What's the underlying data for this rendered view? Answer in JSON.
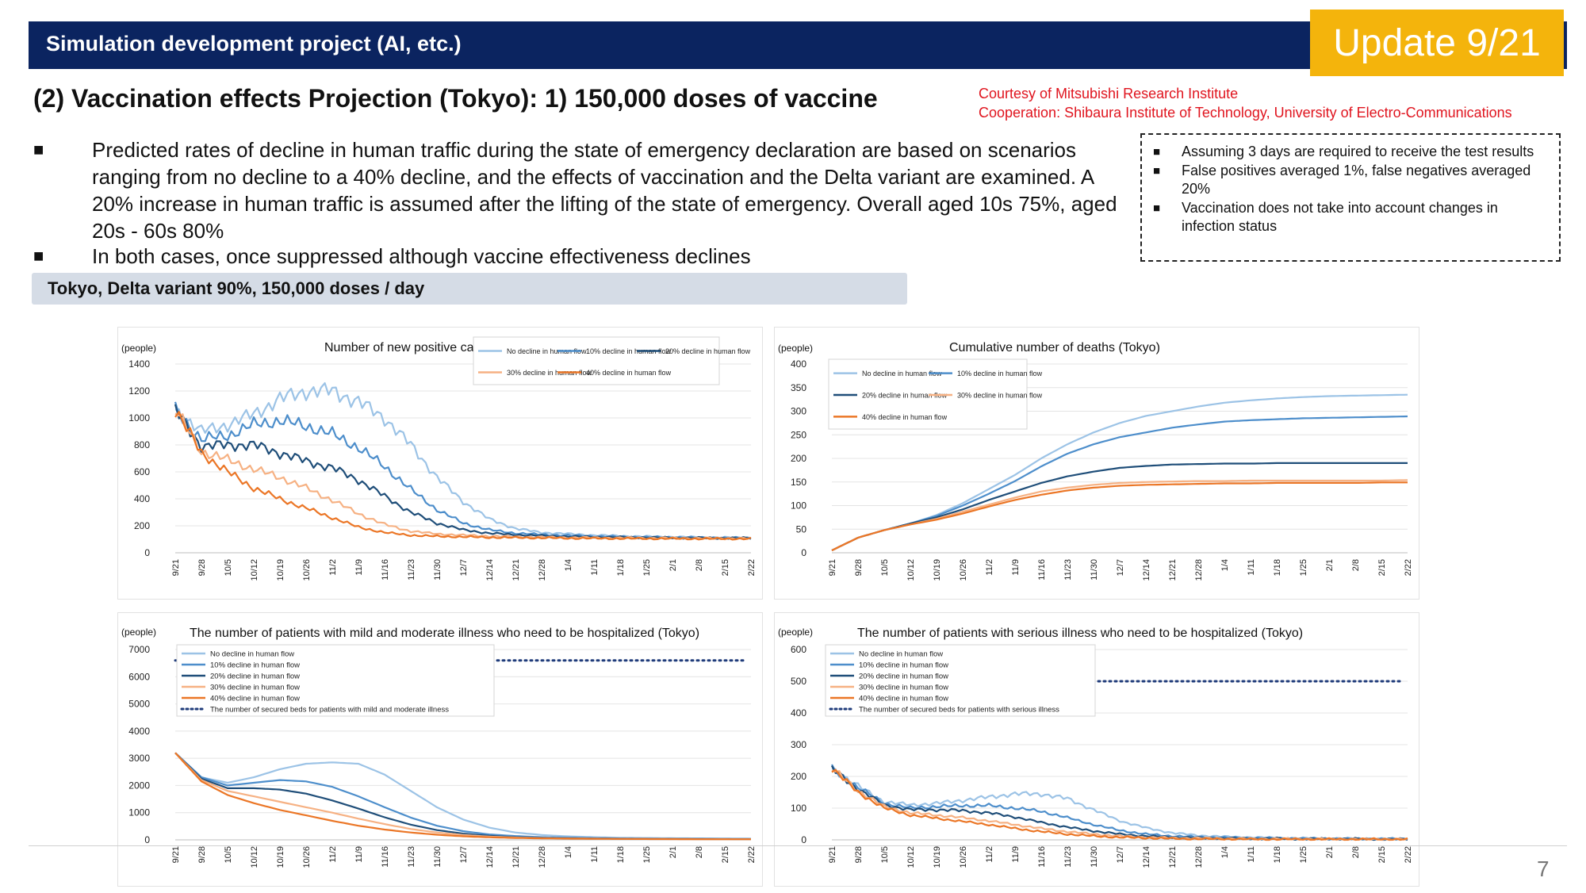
{
  "header": {
    "title": "Simulation development project (AI, etc.)",
    "update_badge": "Update 9/21"
  },
  "subtitle": "(2) Vaccination effects Projection (Tokyo): 1) 150,000 doses of vaccine",
  "courtesy": {
    "line1": "Courtesy of Mitsubishi Research Institute",
    "line2": "Cooperation: Shibaura Institute of Technology, University of Electro-Communications"
  },
  "bullets": [
    "Predicted rates of decline in human traffic during the state of emergency declaration are based on scenarios ranging from no decline to a 40% decline, and the effects of vaccination and the Delta variant are examined. A 20% increase in human traffic is assumed after the lifting of the state of emergency. Overall aged 10s 75%, aged 20s - 60s 80%",
    "In both cases, once suppressed although vaccine effectiveness declines"
  ],
  "bullet_mark": "■",
  "assumptions": [
    "Assuming 3 days are required to receive the test results",
    "False positives averaged 1%, false negatives averaged 20%",
    "Vaccination does not take into account changes in infection status"
  ],
  "scenario_label": "Tokyo, Delta variant 90%, 150,000 doses / day",
  "page_number": "7",
  "colors": {
    "header_bg": "#0b2460",
    "badge_bg": "#f4b40c",
    "courtesy": "#e0141e",
    "series": [
      "#9cc3e6",
      "#4d8ecb",
      "#1f4e79",
      "#f6b183",
      "#eb7626"
    ],
    "beds_line": "#1f3b7a"
  },
  "chart_data": [
    {
      "type": "line",
      "title": "Number of new positive cases (Tokyo)",
      "ylabel": "(people)",
      "ylim": [
        0,
        1400
      ],
      "yticks": [
        0,
        200,
        400,
        600,
        800,
        1000,
        1200,
        1400
      ],
      "x": [
        "9/21",
        "9/28",
        "10/5",
        "10/12",
        "10/19",
        "10/26",
        "11/2",
        "11/9",
        "11/16",
        "11/23",
        "11/30",
        "12/7",
        "12/14",
        "12/21",
        "12/28",
        "1/4",
        "1/11",
        "1/18",
        "1/25",
        "2/1",
        "2/8",
        "2/15",
        "2/22"
      ],
      "legend_cols": 3,
      "noisy": true,
      "series": [
        {
          "name": "No decline in human flow",
          "values": [
            1060,
            900,
            950,
            1030,
            1140,
            1200,
            1200,
            1120,
            1000,
            800,
            560,
            380,
            250,
            180,
            150,
            140,
            130,
            125,
            120,
            118,
            115,
            113,
            112
          ]
        },
        {
          "name": "10% decline in human flow",
          "values": [
            1060,
            840,
            870,
            950,
            980,
            940,
            880,
            780,
            640,
            470,
            320,
            220,
            170,
            145,
            135,
            128,
            123,
            119,
            116,
            114,
            112,
            110,
            110
          ]
        },
        {
          "name": "20% decline in human flow",
          "values": [
            1060,
            790,
            800,
            800,
            740,
            680,
            630,
            540,
            420,
            300,
            220,
            170,
            145,
            133,
            126,
            121,
            117,
            115,
            113,
            111,
            110,
            109,
            108
          ]
        },
        {
          "name": "30% decline in human flow",
          "values": [
            1060,
            750,
            690,
            620,
            560,
            480,
            390,
            290,
            210,
            160,
            140,
            130,
            124,
            119,
            116,
            113,
            111,
            110,
            109,
            108,
            107,
            107,
            106
          ]
        },
        {
          "name": "40% decline in human flow",
          "values": [
            1060,
            740,
            600,
            480,
            400,
            330,
            260,
            190,
            150,
            130,
            122,
            118,
            114,
            112,
            110,
            108,
            107,
            106,
            105,
            105,
            104,
            104,
            104
          ]
        }
      ]
    },
    {
      "type": "line",
      "title": "Cumulative number of deaths (Tokyo)",
      "ylabel": "(people)",
      "ylim": [
        0,
        400
      ],
      "yticks": [
        0,
        50,
        100,
        150,
        200,
        250,
        300,
        350,
        400
      ],
      "x": [
        "9/21",
        "9/28",
        "10/5",
        "10/12",
        "10/19",
        "10/26",
        "11/2",
        "11/9",
        "11/16",
        "11/23",
        "11/30",
        "12/7",
        "12/14",
        "12/21",
        "12/28",
        "1/4",
        "1/11",
        "1/18",
        "1/25",
        "2/1",
        "2/8",
        "2/15",
        "2/22"
      ],
      "legend_cols": 2,
      "noisy": false,
      "series": [
        {
          "name": "No decline in human flow",
          "values": [
            5,
            32,
            48,
            62,
            80,
            105,
            135,
            165,
            200,
            230,
            255,
            275,
            290,
            300,
            310,
            318,
            323,
            327,
            330,
            332,
            333,
            334,
            335
          ]
        },
        {
          "name": "10% decline in human flow",
          "values": [
            5,
            32,
            48,
            62,
            78,
            100,
            125,
            152,
            183,
            210,
            230,
            245,
            255,
            265,
            272,
            278,
            281,
            283,
            285,
            286,
            287,
            288,
            289
          ]
        },
        {
          "name": "20% decline in human flow",
          "values": [
            5,
            32,
            48,
            62,
            75,
            92,
            112,
            130,
            148,
            162,
            172,
            180,
            184,
            187,
            188,
            189,
            189,
            190,
            190,
            190,
            190,
            190,
            190
          ]
        },
        {
          "name": "30% decline in human flow",
          "values": [
            5,
            32,
            48,
            60,
            72,
            87,
            102,
            117,
            130,
            138,
            144,
            148,
            150,
            151,
            152,
            152,
            153,
            153,
            153,
            153,
            153,
            153,
            154
          ]
        },
        {
          "name": "40% decline in human flow",
          "values": [
            5,
            32,
            48,
            60,
            70,
            83,
            98,
            112,
            123,
            132,
            138,
            142,
            144,
            145,
            146,
            147,
            147,
            148,
            148,
            148,
            148,
            149,
            149
          ]
        }
      ]
    },
    {
      "type": "line",
      "title": "The number of patients with mild and moderate illness who need to be hospitalized (Tokyo)",
      "ylabel": "(people)",
      "ylim": [
        0,
        7000
      ],
      "yticks": [
        0,
        1000,
        2000,
        3000,
        4000,
        5000,
        6000,
        7000
      ],
      "x": [
        "9/21",
        "9/28",
        "10/5",
        "10/12",
        "10/19",
        "10/26",
        "11/2",
        "11/9",
        "11/16",
        "11/23",
        "11/30",
        "12/7",
        "12/14",
        "12/21",
        "12/28",
        "1/4",
        "1/11",
        "1/18",
        "1/25",
        "2/1",
        "2/8",
        "2/15",
        "2/22"
      ],
      "legend_cols": 1,
      "noisy": false,
      "capacity": {
        "name": "The number of secured beds for patients with mild and moderate illness",
        "value": 6600
      },
      "series": [
        {
          "name": "No decline in human flow",
          "values": [
            3200,
            2300,
            2100,
            2300,
            2600,
            2800,
            2850,
            2800,
            2400,
            1800,
            1200,
            750,
            450,
            270,
            180,
            130,
            100,
            80,
            70,
            60,
            55,
            50,
            45
          ]
        },
        {
          "name": "10% decline in human flow",
          "values": [
            3200,
            2300,
            2000,
            2100,
            2200,
            2150,
            1950,
            1600,
            1200,
            820,
            520,
            320,
            200,
            140,
            100,
            80,
            65,
            55,
            48,
            42,
            38,
            35,
            32
          ]
        },
        {
          "name": "20% decline in human flow",
          "values": [
            3200,
            2250,
            1900,
            1900,
            1850,
            1700,
            1450,
            1150,
            830,
            560,
            360,
            230,
            150,
            100,
            75,
            60,
            50,
            42,
            37,
            33,
            30,
            28,
            26
          ]
        },
        {
          "name": "30% decline in human flow",
          "values": [
            3200,
            2200,
            1800,
            1600,
            1400,
            1200,
            1000,
            780,
            580,
            400,
            270,
            180,
            120,
            85,
            65,
            52,
            44,
            38,
            33,
            30,
            27,
            25,
            23
          ]
        },
        {
          "name": "40% decline in human flow",
          "values": [
            3200,
            2150,
            1650,
            1350,
            1100,
            900,
            700,
            520,
            380,
            270,
            190,
            130,
            95,
            70,
            55,
            46,
            40,
            35,
            31,
            28,
            26,
            24,
            22
          ]
        }
      ]
    },
    {
      "type": "line",
      "title": "The number of patients with serious illness who need to be hospitalized (Tokyo)",
      "ylabel": "(people)",
      "ylim": [
        0,
        600
      ],
      "yticks": [
        0,
        100,
        200,
        300,
        400,
        500,
        600
      ],
      "x": [
        "9/21",
        "9/28",
        "10/5",
        "10/12",
        "10/19",
        "10/26",
        "11/2",
        "11/9",
        "11/16",
        "11/23",
        "11/30",
        "12/7",
        "12/14",
        "12/21",
        "12/28",
        "1/4",
        "1/11",
        "1/18",
        "1/25",
        "2/1",
        "2/8",
        "2/15",
        "2/22"
      ],
      "legend_cols": 1,
      "noisy": true,
      "capacity": {
        "name": "The number of secured beds for patients with serious illness",
        "value": 500
      },
      "series": [
        {
          "name": "No decline in human flow",
          "values": [
            225,
            170,
            120,
            110,
            115,
            125,
            135,
            145,
            145,
            130,
            95,
            60,
            38,
            22,
            14,
            10,
            8,
            6,
            5,
            4,
            4,
            3,
            3
          ]
        },
        {
          "name": "10% decline in human flow",
          "values": [
            225,
            165,
            115,
            100,
            105,
            108,
            108,
            100,
            90,
            70,
            48,
            30,
            18,
            12,
            9,
            7,
            6,
            5,
            4,
            4,
            3,
            3,
            3
          ]
        },
        {
          "name": "20% decline in human flow",
          "values": [
            225,
            160,
            110,
            95,
            95,
            92,
            85,
            72,
            55,
            40,
            28,
            18,
            12,
            8,
            6,
            5,
            4,
            4,
            3,
            3,
            3,
            2,
            2
          ]
        },
        {
          "name": "30% decline in human flow",
          "values": [
            225,
            155,
            105,
            85,
            78,
            70,
            60,
            48,
            36,
            26,
            18,
            12,
            8,
            6,
            5,
            4,
            3,
            3,
            3,
            2,
            2,
            2,
            2
          ]
        },
        {
          "name": "40% decline in human flow",
          "values": [
            225,
            150,
            100,
            78,
            68,
            58,
            48,
            36,
            26,
            18,
            12,
            8,
            6,
            4,
            3,
            3,
            2,
            2,
            2,
            2,
            2,
            2,
            2
          ]
        }
      ]
    }
  ]
}
